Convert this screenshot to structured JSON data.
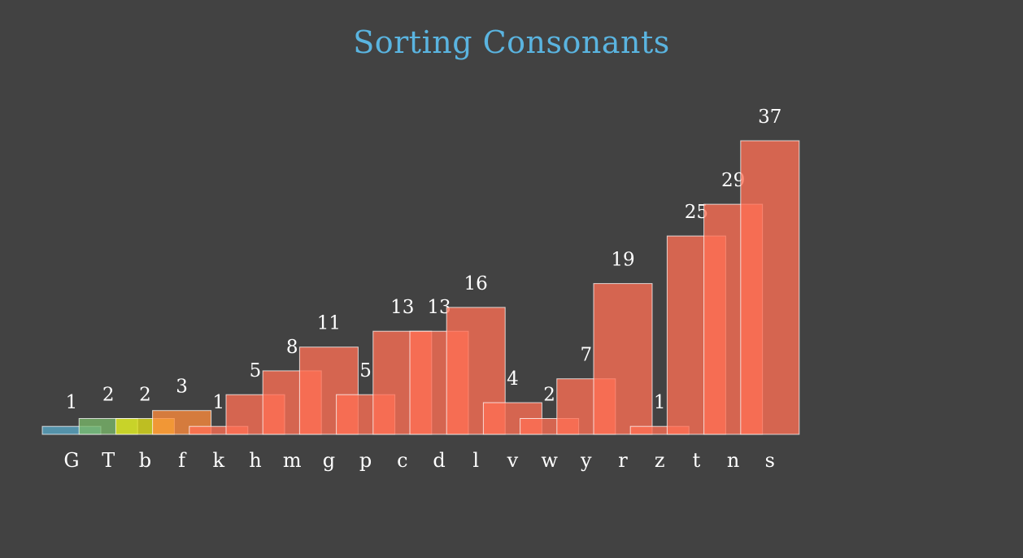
{
  "chart_data": {
    "type": "bar",
    "title": "Sorting Consonants",
    "xlabel": "",
    "ylabel": "",
    "categories": [
      "G",
      "T",
      "b",
      "f",
      "k",
      "h",
      "m",
      "g",
      "p",
      "c",
      "d",
      "l",
      "v",
      "w",
      "y",
      "r",
      "z",
      "t",
      "n",
      "s"
    ],
    "values": [
      1,
      2,
      2,
      3,
      1,
      5,
      8,
      11,
      5,
      13,
      13,
      16,
      4,
      2,
      7,
      19,
      1,
      25,
      29,
      37
    ],
    "ylim": [
      0,
      37
    ],
    "grid": false,
    "legend": "none"
  },
  "colors": {
    "background": "#424242",
    "title": "#5ab4e0",
    "bars": [
      "#5aa9c8",
      "#7ab86a",
      "#e2e21a",
      "#ff8c3c",
      "#ff6f55",
      "#ff6f55",
      "#ff6f55",
      "#ff6f55",
      "#ff6f55",
      "#ff6f55",
      "#ff6f55",
      "#ff6f55",
      "#ff6f55",
      "#ff6f55",
      "#ff6f55",
      "#ff6f55",
      "#ff6f55",
      "#ff6f55",
      "#ff6f55",
      "#ff6f55"
    ],
    "label": "#ffffff"
  }
}
